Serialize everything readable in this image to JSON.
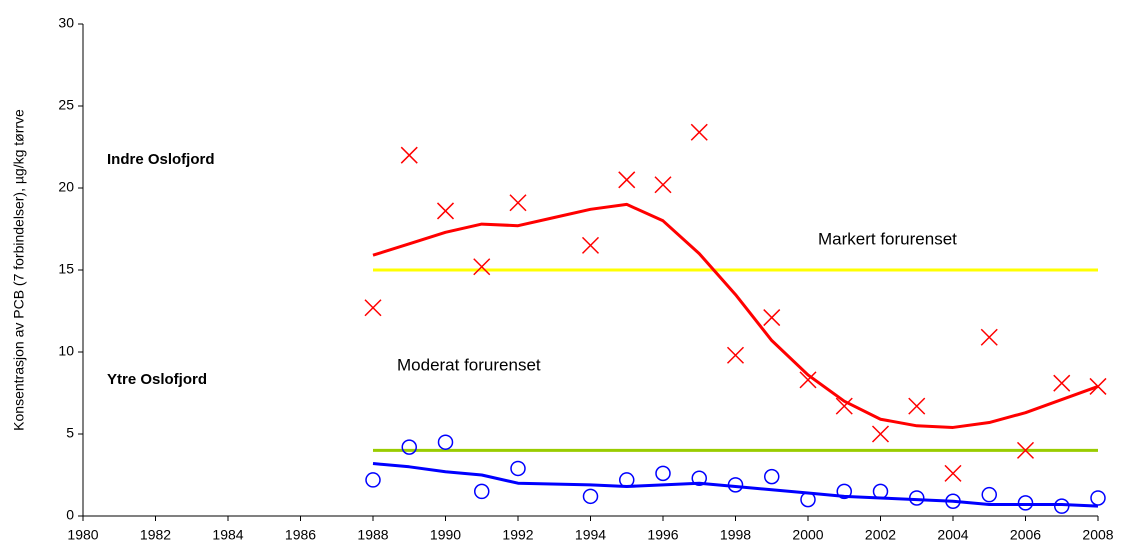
{
  "chart_data": {
    "type": "line",
    "ylabel": "Konsentrasjon av PCB (7 forbindelser), µg/kg tørrve",
    "xlim": [
      1980,
      2008
    ],
    "xticks": [
      1980,
      1982,
      1984,
      1986,
      1988,
      1990,
      1992,
      1994,
      1996,
      1998,
      2000,
      2002,
      2004,
      2006,
      2008
    ],
    "ylim": [
      0,
      30
    ],
    "yticks": [
      0,
      5,
      10,
      15,
      20,
      25,
      30
    ],
    "grid": false,
    "annotations": [
      "Indre Oslofjord",
      "Ytre Oslofjord",
      "Markert forurenset",
      "Moderat forurenset"
    ],
    "series": [
      {
        "color": "#ffff00",
        "marker": "none",
        "x": [
          1988,
          2008
        ],
        "values": [
          15,
          15
        ]
      },
      {
        "color": "#99cc00",
        "marker": "none",
        "x": [
          1988,
          2008
        ],
        "values": [
          4,
          4
        ]
      },
      {
        "color": "#ff0000",
        "marker": "cross",
        "x": [
          1988,
          1989,
          1990,
          1991,
          1992,
          1994,
          1995,
          1996,
          1997,
          1998,
          1999,
          2000,
          2001,
          2002,
          2003,
          2004,
          2005,
          2006,
          2007,
          2008
        ],
        "values": [
          12.7,
          22.0,
          18.6,
          15.2,
          19.1,
          16.5,
          20.5,
          20.2,
          23.4,
          9.8,
          12.1,
          8.3,
          6.7,
          5.0,
          6.7,
          2.6,
          10.9,
          4.0,
          8.1,
          7.9
        ]
      },
      {
        "color": "#ff0000",
        "marker": "none",
        "x": [
          1988,
          1989,
          1990,
          1991,
          1992,
          1993,
          1994,
          1995,
          1996,
          1997,
          1998,
          1999,
          2000,
          2001,
          2002,
          2003,
          2004,
          2005,
          2006,
          2007,
          2008
        ],
        "values": [
          15.9,
          16.6,
          17.3,
          17.8,
          17.7,
          18.2,
          18.7,
          19.0,
          18.0,
          16.0,
          13.5,
          10.7,
          8.6,
          7.0,
          5.9,
          5.5,
          5.4,
          5.7,
          6.3,
          7.1,
          7.9
        ]
      },
      {
        "color": "#0000ff",
        "marker": "circle",
        "x": [
          1988,
          1989,
          1990,
          1991,
          1992,
          1994,
          1995,
          1996,
          1997,
          1998,
          1999,
          2000,
          2001,
          2002,
          2003,
          2004,
          2005,
          2006,
          2007,
          2008
        ],
        "values": [
          2.2,
          4.2,
          4.5,
          1.5,
          2.9,
          1.2,
          2.2,
          2.6,
          2.3,
          1.9,
          2.4,
          1.0,
          1.5,
          1.5,
          1.1,
          0.9,
          1.3,
          0.8,
          0.6,
          1.1
        ]
      },
      {
        "color": "#0000ff",
        "marker": "none",
        "x": [
          1988,
          1989,
          1990,
          1991,
          1992,
          1994,
          1995,
          1996,
          1997,
          1998,
          1999,
          2000,
          2001,
          2002,
          2003,
          2004,
          2005,
          2006,
          2007,
          2008
        ],
        "values": [
          3.2,
          3.0,
          2.7,
          2.5,
          2.0,
          1.9,
          1.8,
          1.9,
          2.0,
          1.8,
          1.6,
          1.4,
          1.2,
          1.1,
          1.0,
          0.9,
          0.7,
          0.7,
          0.7,
          0.6
        ]
      }
    ]
  }
}
